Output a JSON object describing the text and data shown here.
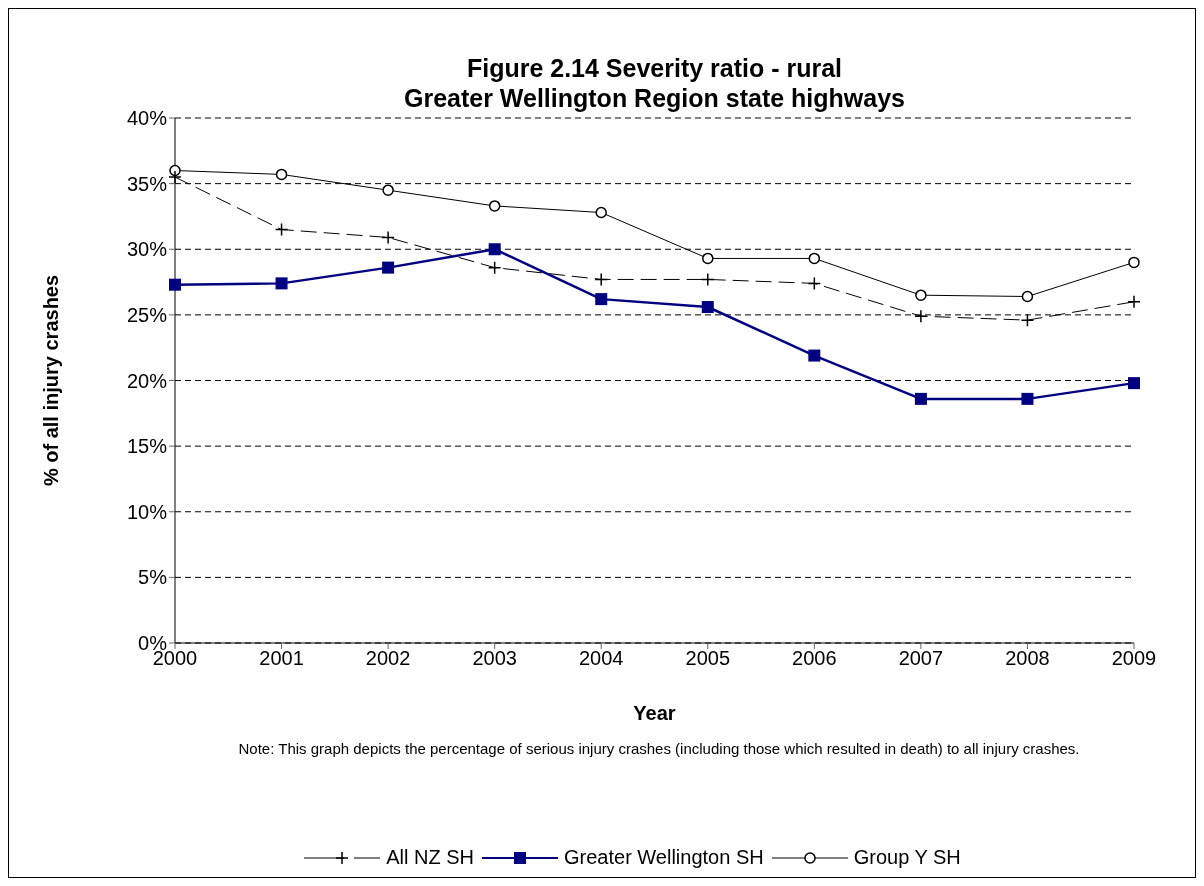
{
  "chart_data": {
    "type": "line",
    "title": "Figure 2.14 Severity ratio - rural\nGreater Wellington Region state highways",
    "xlabel": "Year",
    "ylabel": "% of all injury crashes",
    "categories": [
      "2000",
      "2001",
      "2002",
      "2003",
      "2004",
      "2005",
      "2006",
      "2007",
      "2008",
      "2009"
    ],
    "series": [
      {
        "name": "All NZ SH",
        "color": "#000000",
        "marker": "cross",
        "line_style": "dashed",
        "values": [
          35.5,
          31.5,
          30.9,
          28.6,
          27.7,
          27.7,
          27.4,
          24.9,
          24.6,
          26.0
        ]
      },
      {
        "name": "Greater Wellington SH",
        "color": "#000080",
        "marker": "square",
        "line_style": "solid",
        "values": [
          27.3,
          27.4,
          28.6,
          30.0,
          26.2,
          25.6,
          21.9,
          18.6,
          18.6,
          19.8
        ]
      },
      {
        "name": "Group Y SH",
        "color": "#000000",
        "marker": "circle",
        "line_style": "solid",
        "values": [
          36.0,
          35.7,
          34.5,
          33.3,
          32.8,
          29.3,
          29.3,
          26.5,
          26.4,
          29.0
        ]
      }
    ],
    "ylim": [
      0,
      40
    ],
    "yticks": [
      {
        "value": 0,
        "label": "0%"
      },
      {
        "value": 5,
        "label": "5%"
      },
      {
        "value": 10,
        "label": "10%"
      },
      {
        "value": 15,
        "label": "15%"
      },
      {
        "value": 20,
        "label": "20%"
      },
      {
        "value": 25,
        "label": "25%"
      },
      {
        "value": 30,
        "label": "30%"
      },
      {
        "value": 35,
        "label": "35%"
      },
      {
        "value": 40,
        "label": "40%"
      }
    ],
    "grid": "y",
    "legend": "bottom",
    "annotations": [
      "Note: This graph depicts the percentage of serious injury crashes (including those which resulted in death) to all injury crashes."
    ]
  }
}
